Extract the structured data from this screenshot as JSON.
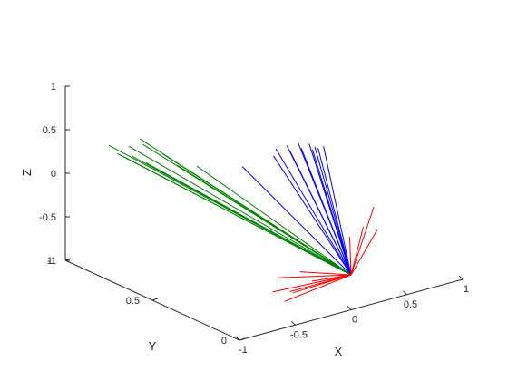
{
  "chart_data": {
    "type": "line",
    "dimensions": 3,
    "xlabel": "X",
    "ylabel": "Y",
    "zlabel": "Z",
    "xlim": [
      -1,
      1
    ],
    "ylim": [
      0,
      1
    ],
    "zlim": [
      -1,
      1
    ],
    "xticks": [
      -1,
      -0.5,
      0,
      0.5,
      1
    ],
    "xtick_labels": [
      "-1",
      "-0.5",
      "0",
      "0.5",
      "1"
    ],
    "yticks": [
      0,
      0.5,
      1
    ],
    "ytick_labels": [
      "0",
      "0.5",
      "1"
    ],
    "zticks": [
      -1,
      -0.5,
      0,
      0.5,
      1
    ],
    "ztick_labels": [
      "-1",
      "-0.5",
      "0",
      "0.5",
      "1"
    ],
    "grid": false,
    "origin": [
      0,
      0,
      -0.6
    ],
    "series": [
      {
        "color": "#0000ff",
        "segments": [
          [
            -0.35,
            0.4,
            0.4
          ],
          [
            -0.15,
            0.35,
            0.5
          ],
          [
            -0.05,
            0.4,
            0.5
          ],
          [
            0.0,
            0.35,
            0.5
          ],
          [
            0.05,
            0.4,
            0.5
          ],
          [
            0.1,
            0.35,
            0.5
          ],
          [
            0.15,
            0.4,
            0.5
          ],
          [
            0.2,
            0.35,
            0.45
          ],
          [
            0.25,
            0.4,
            0.45
          ],
          [
            0.3,
            0.4,
            0.4
          ],
          [
            0.3,
            0.35,
            0.45
          ],
          [
            0.25,
            0.35,
            0.45
          ]
        ]
      },
      {
        "color": "#008000",
        "segments": [
          [
            -1.0,
            0.75,
            0.55
          ],
          [
            -1.0,
            0.7,
            0.5
          ],
          [
            -0.95,
            0.7,
            0.45
          ],
          [
            -0.95,
            0.65,
            0.5
          ],
          [
            -0.9,
            0.7,
            0.55
          ],
          [
            -0.9,
            0.6,
            0.45
          ],
          [
            -0.85,
            0.65,
            0.6
          ],
          [
            -0.8,
            0.7,
            0.6
          ],
          [
            -0.75,
            0.6,
            0.5
          ],
          [
            -0.7,
            0.55,
            0.4
          ],
          [
            -0.65,
            0.5,
            0.35
          ],
          [
            -0.6,
            0.5,
            0.4
          ]
        ]
      },
      {
        "color": "#ff0000",
        "segments": [
          [
            -0.3,
            0.1,
            -0.55
          ],
          [
            -0.35,
            0.0,
            -0.55
          ],
          [
            -0.5,
            0.1,
            -0.55
          ],
          [
            -0.55,
            0.0,
            -0.6
          ],
          [
            -0.7,
            0.0,
            -0.55
          ],
          [
            -0.75,
            -0.1,
            -0.55
          ],
          [
            -0.6,
            -0.05,
            -0.55
          ],
          [
            0.15,
            0.1,
            -0.55
          ],
          [
            0.3,
            0.2,
            -0.45
          ],
          [
            0.5,
            0.25,
            -0.45
          ],
          [
            0.55,
            0.2,
            -0.45
          ],
          [
            0.75,
            0.35,
            -0.4
          ]
        ]
      }
    ]
  }
}
